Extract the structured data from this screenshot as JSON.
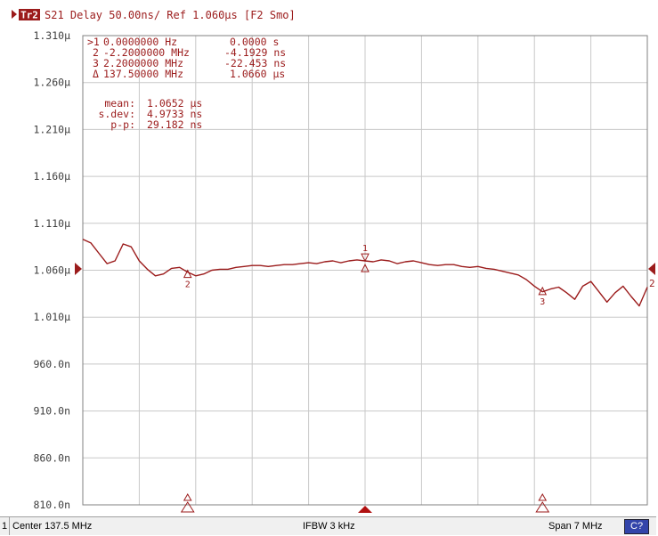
{
  "trace_header": {
    "badge": "Tr2",
    "text": "S21 Delay 50.00ns/ Ref 1.060µs [F2 Smo]"
  },
  "marker_table": [
    {
      "id": ">1",
      "freq": "0.0000000 Hz",
      "value": "0.0000 s"
    },
    {
      "id": "2",
      "freq": "-2.2000000 MHz",
      "value": "-4.1929 ns"
    },
    {
      "id": "3",
      "freq": "2.2000000 MHz",
      "value": "-22.453 ns"
    },
    {
      "id": "Δ",
      "freq": "137.50000 MHz",
      "value": "1.0660 µs"
    }
  ],
  "statistics": [
    {
      "label": "mean:",
      "value": "1.0652 µs"
    },
    {
      "label": "s.dev:",
      "value": "4.9733 ns"
    },
    {
      "label": "p-p:",
      "value": "29.182 ns"
    }
  ],
  "colors": {
    "trace": "#9b1b1b",
    "grid": "#c8c8c8",
    "frame": "#808080",
    "text": "#9b1b1b",
    "marker_fill": "#b01010"
  },
  "chart_data": {
    "type": "line",
    "title": "S21 Delay 50.00ns/ Ref 1.060µs [F2 Smo]",
    "xlabel": "",
    "ylabel": "",
    "x_unit": "MHz",
    "xlim": [
      134.0,
      141.0
    ],
    "ylim": [
      0.81,
      1.31
    ],
    "y_tick_labels": [
      "1.310µ",
      "1.260µ",
      "1.210µ",
      "1.160µ",
      "1.110µ",
      "1.060µ",
      "1.010µ",
      "960.0n",
      "910.0n",
      "860.0n",
      "810.0n"
    ],
    "y_tick_values": [
      1.31,
      1.26,
      1.21,
      1.16,
      1.11,
      1.06,
      1.01,
      0.96,
      0.91,
      0.86,
      0.81
    ],
    "reference_level": 1.06,
    "x_divisions": 10,
    "grid": true,
    "series": [
      {
        "x": [
          134.0,
          134.1,
          134.2,
          134.3,
          134.4,
          134.5,
          134.6,
          134.7,
          134.8,
          134.9,
          135.0,
          135.1,
          135.2,
          135.3,
          135.4,
          135.5,
          135.6,
          135.7,
          135.8,
          135.9,
          136.0,
          136.1,
          136.2,
          136.3,
          136.4,
          136.5,
          136.6,
          136.7,
          136.8,
          136.9,
          137.0,
          137.1,
          137.2,
          137.3,
          137.4,
          137.5,
          137.6,
          137.7,
          137.8,
          137.9,
          138.0,
          138.1,
          138.2,
          138.3,
          138.4,
          138.5,
          138.6,
          138.7,
          138.8,
          138.9,
          139.0,
          139.1,
          139.2,
          139.3,
          139.4,
          139.5,
          139.6,
          139.7,
          139.8,
          139.9,
          140.0,
          140.1,
          140.2,
          140.3,
          140.4,
          140.5,
          140.6,
          140.7,
          140.8,
          140.9,
          141.0
        ],
        "y": [
          1.093,
          1.089,
          1.078,
          1.067,
          1.07,
          1.088,
          1.085,
          1.07,
          1.061,
          1.054,
          1.056,
          1.062,
          1.063,
          1.058,
          1.054,
          1.056,
          1.06,
          1.061,
          1.061,
          1.063,
          1.064,
          1.065,
          1.065,
          1.064,
          1.065,
          1.066,
          1.066,
          1.067,
          1.068,
          1.067,
          1.069,
          1.07,
          1.068,
          1.07,
          1.071,
          1.07,
          1.069,
          1.071,
          1.07,
          1.067,
          1.069,
          1.07,
          1.068,
          1.066,
          1.065,
          1.066,
          1.066,
          1.064,
          1.063,
          1.064,
          1.062,
          1.061,
          1.059,
          1.057,
          1.055,
          1.05,
          1.043,
          1.037,
          1.04,
          1.042,
          1.036,
          1.029,
          1.043,
          1.048,
          1.037,
          1.026,
          1.036,
          1.043,
          1.032,
          1.022,
          1.042
        ]
      }
    ],
    "markers": [
      {
        "label": "1",
        "x": 137.5,
        "y": 1.066
      },
      {
        "label": "2",
        "x": 135.3,
        "y": 1.0618
      },
      {
        "label": "3",
        "x": 139.7,
        "y": 1.0435
      }
    ],
    "right_edge_label": "2"
  },
  "status_bar": {
    "channel": "1",
    "center": "Center 137.5 MHz",
    "ifbw": "IFBW 3 kHz",
    "span": "Span 7 MHz",
    "cal": "C?"
  }
}
